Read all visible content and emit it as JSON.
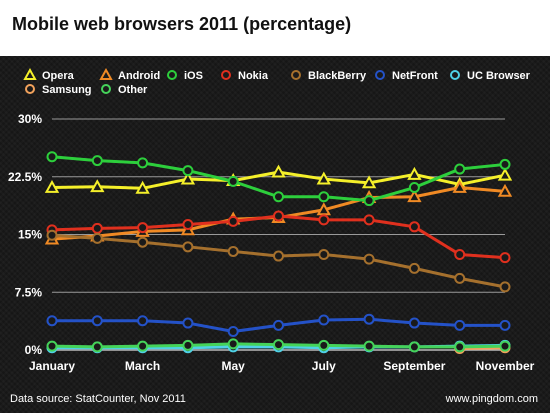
{
  "header": {
    "title": "Mobile web browsers 2011 (percentage)"
  },
  "footer": {
    "source": "Data source: StatCounter, Nov 2011",
    "credit": "www.pingdom.com"
  },
  "chart_data": {
    "type": "line",
    "title": "Mobile web browsers 2011 (percentage)",
    "x": [
      "January",
      "February",
      "March",
      "April",
      "May",
      "June",
      "July",
      "August",
      "September",
      "October",
      "November"
    ],
    "x_tick_labels": [
      "January",
      "",
      "March",
      "",
      "May",
      "",
      "July",
      "",
      "September",
      "",
      "November"
    ],
    "y_ticks": [
      0,
      7.5,
      15,
      22.5,
      30
    ],
    "y_tick_labels": [
      "0%",
      "7.5%",
      "15%",
      "22.5%",
      "30%"
    ],
    "ylim": [
      0,
      30
    ],
    "grid": "horizontal",
    "legend_position": "top",
    "series": [
      {
        "name": "Opera",
        "marker": "triangle",
        "color": "#f5f02a",
        "values": [
          21.1,
          21.2,
          21.0,
          22.2,
          22.0,
          23.1,
          22.2,
          21.7,
          22.8,
          21.5,
          22.7
        ]
      },
      {
        "name": "Android",
        "marker": "triangle",
        "color": "#f08a24",
        "values": [
          14.4,
          14.8,
          15.4,
          15.6,
          17.0,
          17.2,
          18.2,
          19.8,
          19.9,
          21.1,
          20.6
        ]
      },
      {
        "name": "iOS",
        "marker": "circle",
        "color": "#2dcf3c",
        "values": [
          25.1,
          24.6,
          24.3,
          23.3,
          21.9,
          19.9,
          19.9,
          19.4,
          21.1,
          23.5,
          24.1
        ]
      },
      {
        "name": "Nokia",
        "marker": "circle",
        "color": "#e0301e",
        "values": [
          15.6,
          15.8,
          15.9,
          16.3,
          16.7,
          17.4,
          16.9,
          16.9,
          16.0,
          12.4,
          12.0
        ]
      },
      {
        "name": "BlackBerry",
        "marker": "circle",
        "color": "#a5702d",
        "values": [
          14.9,
          14.5,
          14.0,
          13.4,
          12.8,
          12.2,
          12.4,
          11.8,
          10.6,
          9.3,
          8.2
        ]
      },
      {
        "name": "NetFront",
        "marker": "circle",
        "color": "#2452c8",
        "values": [
          3.8,
          3.8,
          3.8,
          3.5,
          2.4,
          3.2,
          3.9,
          4.0,
          3.5,
          3.2,
          3.2
        ]
      },
      {
        "name": "UC Browser",
        "marker": "circle",
        "color": "#4fd2e6",
        "values": [
          0.3,
          0.3,
          0.3,
          0.3,
          0.4,
          0.4,
          0.3,
          0.4,
          0.4,
          0.5,
          0.6
        ]
      },
      {
        "name": "Samsung",
        "marker": "circle",
        "color": "#f2a25c",
        "values": [
          null,
          null,
          null,
          null,
          null,
          null,
          null,
          null,
          null,
          0.2,
          0.3
        ]
      },
      {
        "name": "Other",
        "marker": "circle",
        "color": "#45d35a",
        "values": [
          0.5,
          0.4,
          0.5,
          0.6,
          0.8,
          0.7,
          0.6,
          0.5,
          0.4,
          0.4,
          0.5
        ]
      }
    ]
  }
}
